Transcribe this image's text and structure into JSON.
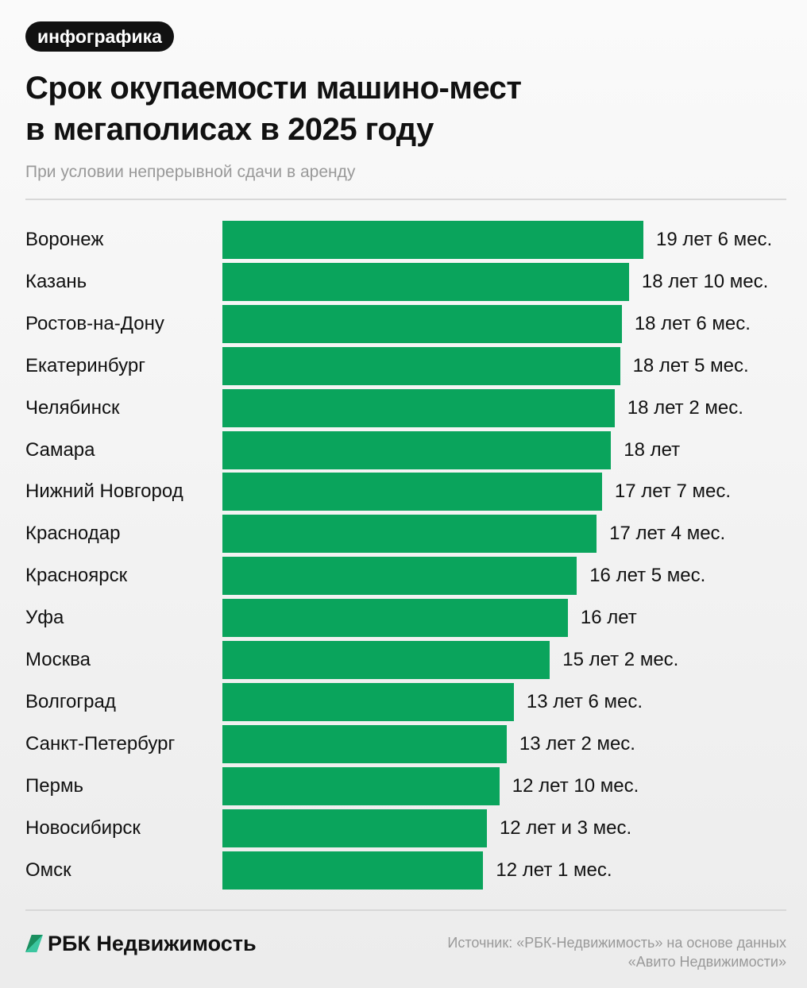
{
  "badge": "инфографика",
  "title_line1": "Срок окупаемости машино-мест",
  "title_line2": "в мегаполисах в 2025 году",
  "subtitle": "При условии непрерывной сдачи в аренду",
  "colors": {
    "bar": "#0aa45c",
    "badge_bg": "#111111"
  },
  "chart_data": {
    "type": "bar",
    "orientation": "horizontal",
    "categories": [
      "Воронеж",
      "Казань",
      "Ростов-на-Дону",
      "Екатеринбург",
      "Челябинск",
      "Самара",
      "Нижний Новгород",
      "Краснодар",
      "Красноярск",
      "Уфа",
      "Москва",
      "Волгоград",
      "Санкт-Петербург",
      "Пермь",
      "Новосибирск",
      "Омск"
    ],
    "values": [
      19.5,
      18.833,
      18.5,
      18.417,
      18.167,
      18,
      17.583,
      17.333,
      16.417,
      16,
      15.167,
      13.5,
      13.167,
      12.833,
      12.25,
      12.083
    ],
    "data_labels": [
      "19 лет 6 мес.",
      "18 лет 10 мес.",
      "18 лет 6 мес.",
      "18 лет 5 мес.",
      "18 лет 2 мес.",
      "18 лет",
      "17 лет 7 мес.",
      "17 лет 4 мес.",
      "16 лет 5 мес.",
      "16 лет",
      "15 лет 2 мес.",
      "13 лет 6 мес.",
      "13 лет 2 мес.",
      "12 лет 10 мес.",
      "12 лет и 3 мес.",
      "12 лет 1 мес."
    ],
    "unit": "years",
    "xlim": [
      0,
      19.5
    ],
    "grid": false
  },
  "footer": {
    "logo_text": "РБК Недвижимость",
    "source_line1": "Источник: «РБК-Недвижимость» на основе данных",
    "source_line2": "«Авито Недвижимости»"
  }
}
